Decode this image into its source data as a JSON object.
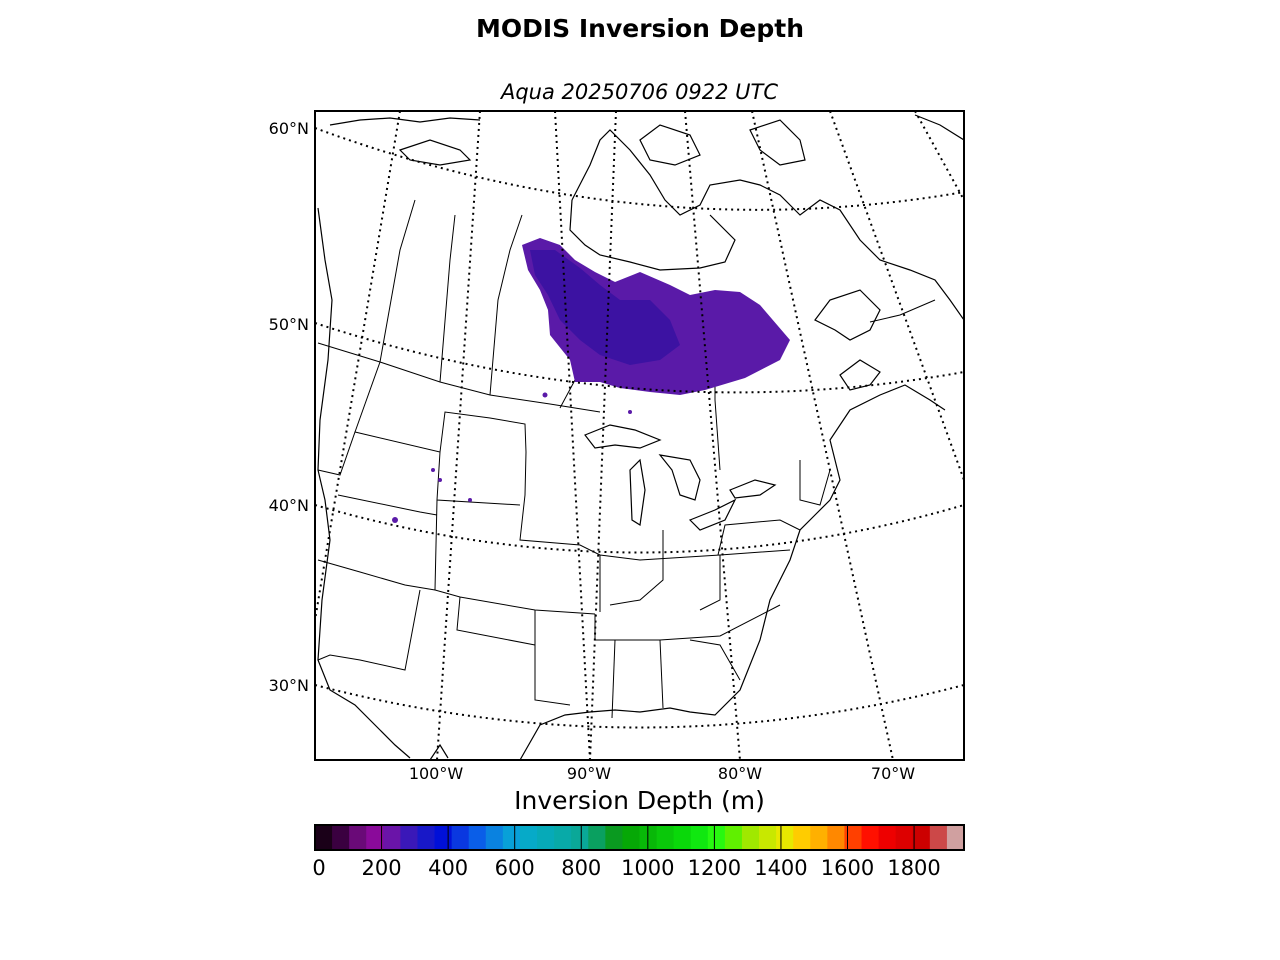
{
  "title": "MODIS Inversion Depth",
  "subtitle": "Aqua 20250706 0922 UTC",
  "map": {
    "lat_labels": [
      {
        "text": "60°N",
        "value": 60
      },
      {
        "text": "50°N",
        "value": 50
      },
      {
        "text": "40°N",
        "value": 40
      },
      {
        "text": "30°N",
        "value": 30
      }
    ],
    "lon_labels": [
      {
        "text": "100°W",
        "value": -100
      },
      {
        "text": "90°W",
        "value": -90
      },
      {
        "text": "80°W",
        "value": -80
      },
      {
        "text": "70°W",
        "value": -70
      }
    ],
    "data_color": "#5a1aa8",
    "border_color": "#000000"
  },
  "colorbar": {
    "label": "Inversion Depth (m)",
    "min": 0,
    "max": 1950,
    "step": 50,
    "tick_labels": [
      "0",
      "200",
      "400",
      "600",
      "800",
      "1000",
      "1200",
      "1400",
      "1600",
      "1800"
    ],
    "colors": [
      "#1a0018",
      "#3a0040",
      "#6a0a78",
      "#8a0a9a",
      "#6a14a8",
      "#3a18b8",
      "#1818c8",
      "#0010d8",
      "#0a38e0",
      "#0a5ee8",
      "#0a82e0",
      "#08a0d8",
      "#06aac8",
      "#06aab8",
      "#08aaa8",
      "#0aa898",
      "#0aa060",
      "#0a9a20",
      "#06a806",
      "#08b808",
      "#0ac80a",
      "#0ad80a",
      "#10e810",
      "#28f810",
      "#60f000",
      "#a0e800",
      "#c8e800",
      "#e8e800",
      "#ffcc00",
      "#ffb000",
      "#ff8800",
      "#ff4000",
      "#ff1000",
      "#ee0000",
      "#dd0000",
      "#cc0000",
      "#cc4848",
      "#d0a0a0"
    ]
  }
}
